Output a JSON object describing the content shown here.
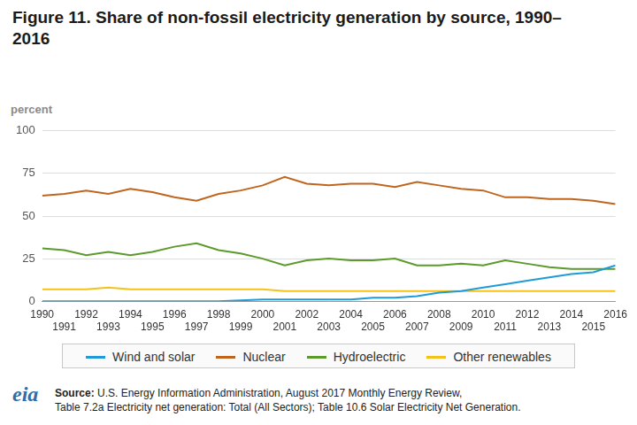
{
  "chart_data": {
    "type": "line",
    "title": "Figure 11. Share of non-fossil electricity generation by source, 1990–2016",
    "ylabel": "percent",
    "categories": [
      "1990",
      "1991",
      "1992",
      "1993",
      "1994",
      "1995",
      "1996",
      "1997",
      "1998",
      "1999",
      "2000",
      "2001",
      "2002",
      "2003",
      "2004",
      "2005",
      "2006",
      "2007",
      "2008",
      "2009",
      "2010",
      "2011",
      "2012",
      "2013",
      "2014",
      "2015",
      "2016"
    ],
    "series": [
      {
        "name": "Wind and solar",
        "color": "#1f9bd7",
        "values": [
          0,
          0,
          0,
          0,
          0,
          0,
          0,
          0,
          0,
          0.5,
          1,
          1,
          1,
          1,
          1,
          2,
          2,
          3,
          5,
          6,
          8,
          10,
          12,
          14,
          16,
          17,
          21
        ]
      },
      {
        "name": "Nuclear",
        "color": "#c0651e",
        "values": [
          62,
          63,
          65,
          63,
          66,
          64,
          61,
          59,
          63,
          65,
          68,
          73,
          69,
          68,
          69,
          69,
          67,
          70,
          68,
          66,
          65,
          61,
          61,
          60,
          60,
          59,
          57
        ]
      },
      {
        "name": "Hydroelectric",
        "color": "#5b9a2b",
        "values": [
          31,
          30,
          27,
          29,
          27,
          29,
          32,
          34,
          30,
          28,
          25,
          21,
          24,
          25,
          24,
          24,
          25,
          21,
          21,
          22,
          21,
          24,
          22,
          20,
          19,
          19,
          19
        ]
      },
      {
        "name": "Other renewables",
        "color": "#f5c21b",
        "values": [
          7,
          7,
          7,
          8,
          7,
          7,
          7,
          7,
          7,
          7,
          7,
          6,
          6,
          6,
          6,
          6,
          6,
          6,
          6,
          6,
          6,
          6,
          6,
          6,
          6,
          6,
          6
        ]
      }
    ],
    "ylim": [
      0,
      100
    ],
    "yticks": [
      0,
      25,
      50,
      75,
      100
    ],
    "grid": true,
    "legend": "bottom",
    "source": {
      "label": "Source:",
      "lines": [
        "U.S. Energy Information Administration, August 2017 Monthly Energy Review,",
        "Table 7.2a Electricity net generation: Total (All Sectors); Table 10.6 Solar Electricity Net Generation."
      ]
    },
    "logo": "eia"
  }
}
